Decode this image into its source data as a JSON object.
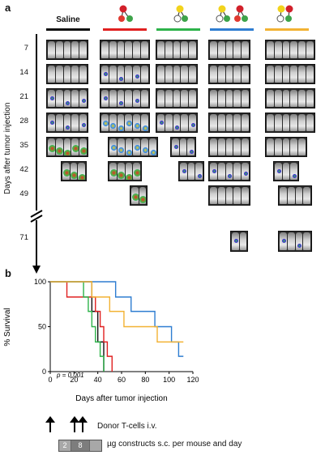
{
  "panel_a": {
    "letter": "a",
    "groups": [
      {
        "label": "Saline",
        "color": "#111111",
        "icon": "none"
      },
      {
        "label": "",
        "color": "#e02020",
        "icon": "red-green-construct-icon"
      },
      {
        "label": "",
        "color": "#2db34a",
        "icon": "yellow-green-construct-icon"
      },
      {
        "label": "",
        "color": "#2e7dd1",
        "icon": "yellow-green-red-green-construct-icon"
      },
      {
        "label": "",
        "color": "#f2b233",
        "icon": "yellow-red-green-construct-icon"
      }
    ],
    "days": [
      "7",
      "14",
      "21",
      "28",
      "35",
      "42",
      "49",
      "71"
    ],
    "axis_title": "Days after tumor injection"
  },
  "panel_b": {
    "letter": "b",
    "p_value": "p = 0.001"
  },
  "chart_data": {
    "type": "line",
    "ylabel": "% Survival",
    "xlabel": "Days after tumor injection",
    "xlim": [
      0,
      120
    ],
    "ylim": [
      0,
      100
    ],
    "xticks": [
      "0",
      "20",
      "40",
      "60",
      "80",
      "100",
      "120"
    ],
    "yticks": [
      "0",
      "50",
      "100"
    ],
    "series": [
      {
        "color": "#111111",
        "x": [
          0,
          35,
          35,
          40,
          40,
          45,
          45
        ],
        "y": [
          100,
          100,
          67,
          67,
          33,
          33,
          0
        ]
      },
      {
        "color": "#e02020",
        "x": [
          0,
          14,
          14,
          38,
          38,
          42,
          42,
          45,
          45,
          48,
          48,
          52,
          52
        ],
        "y": [
          100,
          100,
          83,
          83,
          67,
          67,
          50,
          50,
          33,
          33,
          17,
          17,
          0
        ]
      },
      {
        "color": "#2db34a",
        "x": [
          0,
          28,
          28,
          32,
          32,
          35,
          35,
          38,
          38,
          42,
          42,
          45,
          45
        ],
        "y": [
          100,
          100,
          83,
          83,
          67,
          67,
          50,
          50,
          33,
          33,
          17,
          17,
          0
        ]
      },
      {
        "color": "#2e7dd1",
        "x": [
          0,
          55,
          55,
          68,
          68,
          88,
          88,
          102,
          102,
          108,
          108,
          112
        ],
        "y": [
          100,
          100,
          83,
          83,
          67,
          67,
          50,
          50,
          33,
          33,
          17,
          17
        ]
      },
      {
        "color": "#f2b233",
        "x": [
          0,
          35,
          35,
          43,
          43,
          50,
          50,
          62,
          62,
          90,
          90,
          98,
          98,
          112
        ],
        "y": [
          100,
          100,
          83,
          83,
          83,
          83,
          67,
          67,
          50,
          50,
          33,
          33,
          33,
          33
        ]
      }
    ]
  },
  "legend": {
    "donor_tcells": "Donor T-cells i.v.",
    "dose_1": "2",
    "dose_2": "8",
    "dose_text": "µg constructs s.c. per mouse and day"
  }
}
